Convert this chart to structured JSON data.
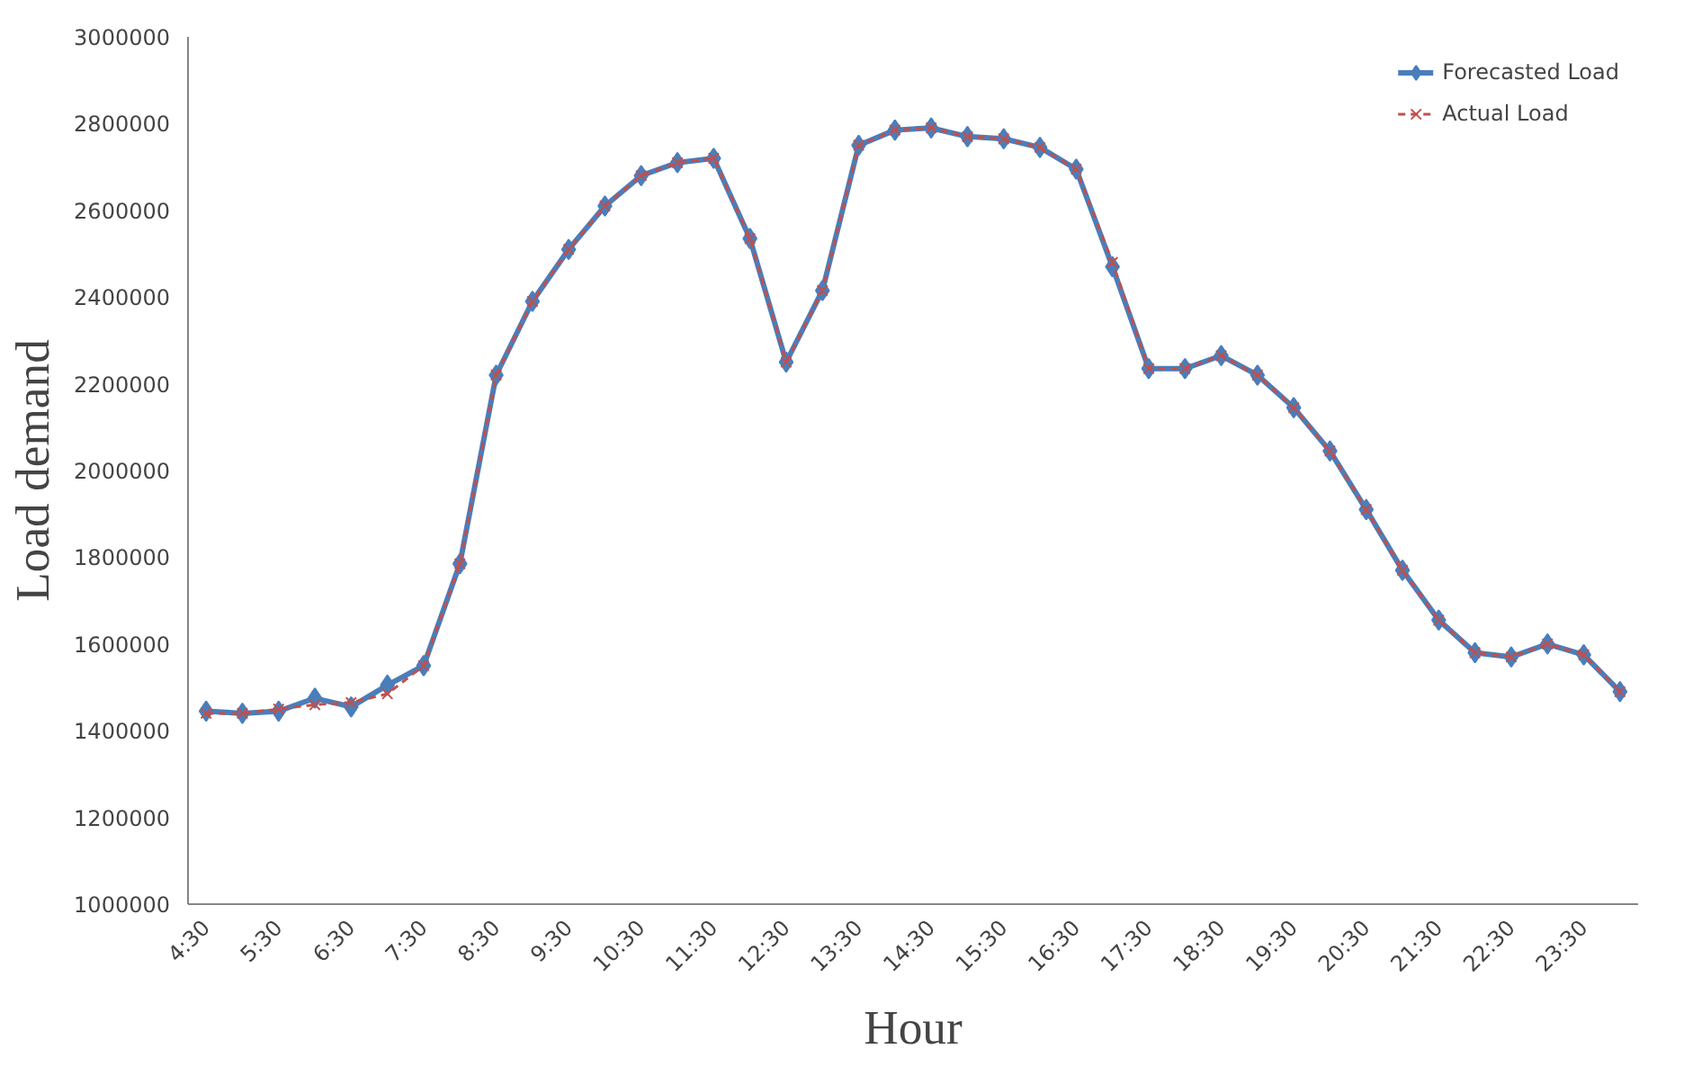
{
  "chart_data": {
    "type": "line",
    "xlabel": "Hour",
    "ylabel": "Load demand",
    "categories": [
      "4:30",
      null,
      "5:30",
      null,
      "6:30",
      null,
      "7:30",
      null,
      "8:30",
      null,
      "9:30",
      null,
      "10:30",
      null,
      "11:30",
      null,
      "12:30",
      null,
      "13:30",
      null,
      "14:30",
      null,
      "15:30",
      null,
      "16:30",
      null,
      "17:30",
      null,
      "18:30",
      null,
      "19:30",
      null,
      "20:30",
      null,
      "21:30",
      null,
      "22:30",
      null,
      "23:30",
      null
    ],
    "series": [
      {
        "name": "Forecasted Load",
        "color": "#4a7ebb",
        "marker": "diamond",
        "line_style": "solid",
        "values": [
          1445000,
          1440000,
          1445000,
          1475000,
          1455000,
          1505000,
          1550000,
          1785000,
          2220000,
          2390000,
          2510000,
          2610000,
          2680000,
          2710000,
          2720000,
          2535000,
          2250000,
          2415000,
          2750000,
          2785000,
          2790000,
          2770000,
          2765000,
          2745000,
          2695000,
          2470000,
          2235000,
          2235000,
          2265000,
          2220000,
          2145000,
          2045000,
          1910000,
          1770000,
          1655000,
          1580000,
          1570000,
          1600000,
          1575000,
          1490000
        ]
      },
      {
        "name": "Actual Load",
        "color": "#c0504d",
        "marker": "cross",
        "line_style": "dashed",
        "values": [
          1440000,
          1440000,
          1450000,
          1460000,
          1465000,
          1485000,
          1550000,
          1785000,
          2220000,
          2390000,
          2510000,
          2610000,
          2680000,
          2710000,
          2720000,
          2535000,
          2250000,
          2415000,
          2750000,
          2785000,
          2790000,
          2770000,
          2765000,
          2745000,
          2695000,
          2480000,
          2235000,
          2235000,
          2265000,
          2220000,
          2145000,
          2045000,
          1910000,
          1770000,
          1655000,
          1580000,
          1570000,
          1600000,
          1575000,
          1490000
        ]
      }
    ],
    "ylim": [
      1000000,
      3000000
    ],
    "yticks": [
      1000000,
      1200000,
      1400000,
      1600000,
      1800000,
      2000000,
      2200000,
      2400000,
      2600000,
      2800000,
      3000000
    ],
    "grid": false,
    "legend": "top right"
  }
}
